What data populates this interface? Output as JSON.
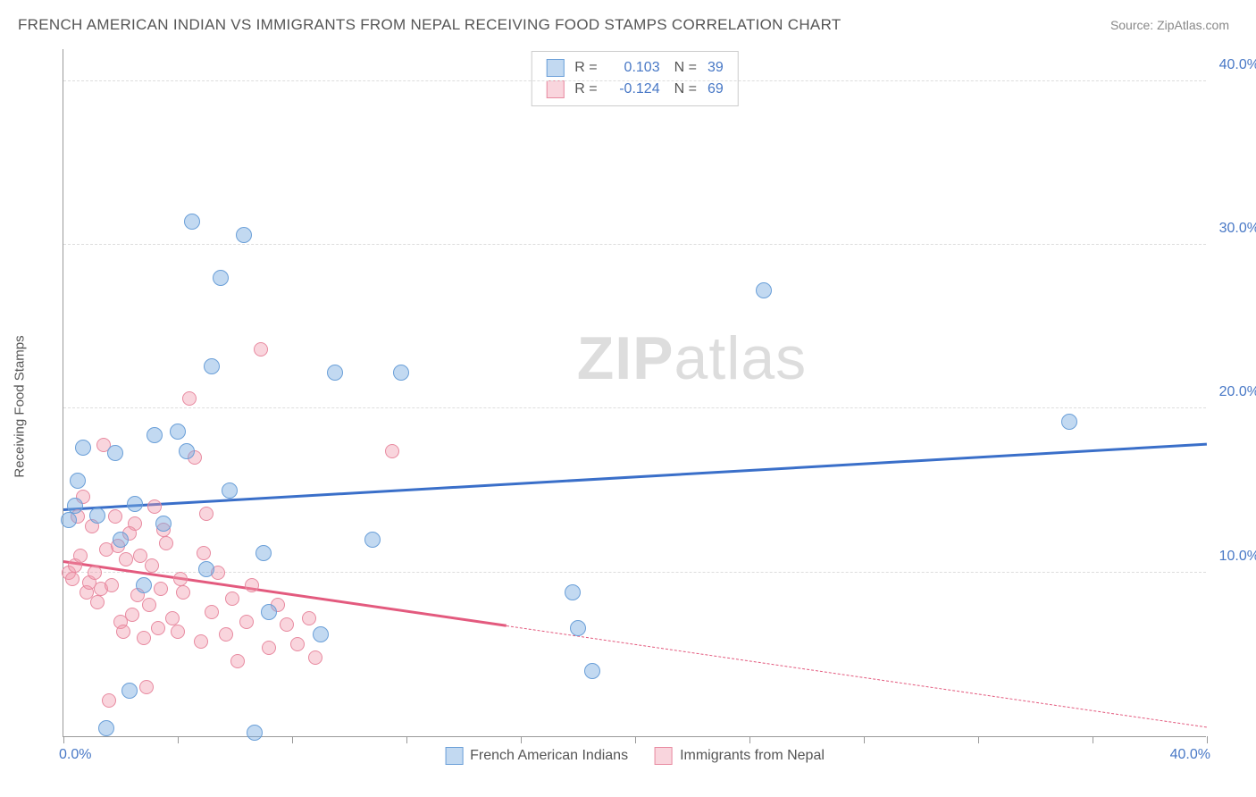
{
  "header": {
    "title": "FRENCH AMERICAN INDIAN VS IMMIGRANTS FROM NEPAL RECEIVING FOOD STAMPS CORRELATION CHART",
    "source": "Source: ZipAtlas.com"
  },
  "chart": {
    "type": "scatter",
    "ylabel": "Receiving Food Stamps",
    "watermark_bold": "ZIP",
    "watermark_light": "atlas",
    "xlim": [
      0,
      40
    ],
    "ylim": [
      0,
      42
    ],
    "xticks_minor": [
      0,
      4,
      8,
      12,
      16,
      20,
      24,
      28,
      32,
      36,
      40
    ],
    "xtick_label_left": "0.0%",
    "xtick_label_right": "40.0%",
    "yticks": [
      {
        "v": 10,
        "label": "10.0%"
      },
      {
        "v": 20,
        "label": "20.0%"
      },
      {
        "v": 30,
        "label": "30.0%"
      },
      {
        "v": 40,
        "label": "40.0%"
      }
    ],
    "background_color": "#ffffff",
    "grid_color": "#dddddd",
    "axis_color": "#999999",
    "tick_label_color": "#4878c6",
    "series": [
      {
        "name": "French American Indians",
        "color_fill": "rgba(120,170,225,0.45)",
        "color_stroke": "#6a9fd8",
        "marker_class": "m-blue",
        "marker_size": 18,
        "regression": {
          "x0": 0,
          "y0": 13.8,
          "x1": 40,
          "y1": 17.8,
          "solid_until_x": 40,
          "color": "#3a6fc9"
        },
        "r": "0.103",
        "n": "39",
        "points": [
          [
            0.2,
            13.2
          ],
          [
            0.4,
            14.1
          ],
          [
            0.5,
            15.6
          ],
          [
            0.7,
            17.6
          ],
          [
            1.2,
            13.5
          ],
          [
            1.8,
            17.3
          ],
          [
            1.5,
            0.5
          ],
          [
            2.0,
            12.0
          ],
          [
            2.3,
            2.8
          ],
          [
            2.5,
            14.2
          ],
          [
            2.8,
            9.2
          ],
          [
            3.2,
            18.4
          ],
          [
            3.5,
            13.0
          ],
          [
            4.0,
            18.6
          ],
          [
            4.3,
            17.4
          ],
          [
            4.5,
            31.4
          ],
          [
            5.2,
            22.6
          ],
          [
            5.5,
            28.0
          ],
          [
            5.8,
            15.0
          ],
          [
            6.3,
            30.6
          ],
          [
            6.7,
            0.2
          ],
          [
            7.0,
            11.2
          ],
          [
            7.2,
            7.6
          ],
          [
            5.0,
            10.2
          ],
          [
            9.0,
            6.2
          ],
          [
            9.5,
            22.2
          ],
          [
            10.8,
            12.0
          ],
          [
            11.8,
            22.2
          ],
          [
            17.8,
            8.8
          ],
          [
            18.0,
            6.6
          ],
          [
            18.5,
            4.0
          ],
          [
            24.5,
            27.2
          ],
          [
            35.2,
            19.2
          ]
        ]
      },
      {
        "name": "Immigrants from Nepal",
        "color_fill": "rgba(240,150,170,0.4)",
        "color_stroke": "#e88aa0",
        "marker_class": "m-pink",
        "marker_size": 16,
        "regression": {
          "x0": 0,
          "y0": 10.6,
          "x1": 40,
          "y1": 0.5,
          "solid_until_x": 15.5,
          "color": "#e35a7e"
        },
        "r": "-0.124",
        "n": "69",
        "points": [
          [
            0.2,
            10.0
          ],
          [
            0.3,
            9.6
          ],
          [
            0.4,
            10.4
          ],
          [
            0.5,
            13.4
          ],
          [
            0.6,
            11.0
          ],
          [
            0.8,
            8.8
          ],
          [
            0.9,
            9.4
          ],
          [
            1.0,
            12.8
          ],
          [
            1.1,
            10.0
          ],
          [
            1.3,
            9.0
          ],
          [
            1.4,
            17.8
          ],
          [
            1.5,
            11.4
          ],
          [
            1.7,
            9.2
          ],
          [
            1.8,
            13.4
          ],
          [
            2.0,
            7.0
          ],
          [
            2.1,
            6.4
          ],
          [
            2.2,
            10.8
          ],
          [
            2.4,
            7.4
          ],
          [
            2.5,
            13.0
          ],
          [
            2.6,
            8.6
          ],
          [
            2.8,
            6.0
          ],
          [
            2.9,
            3.0
          ],
          [
            3.0,
            8.0
          ],
          [
            3.1,
            10.4
          ],
          [
            3.3,
            6.6
          ],
          [
            3.4,
            9.0
          ],
          [
            3.6,
            11.8
          ],
          [
            3.8,
            7.2
          ],
          [
            4.0,
            6.4
          ],
          [
            4.2,
            8.8
          ],
          [
            4.4,
            20.6
          ],
          [
            4.6,
            17.0
          ],
          [
            4.8,
            5.8
          ],
          [
            5.0,
            13.6
          ],
          [
            5.2,
            7.6
          ],
          [
            5.4,
            10.0
          ],
          [
            5.7,
            6.2
          ],
          [
            5.9,
            8.4
          ],
          [
            6.1,
            4.6
          ],
          [
            6.4,
            7.0
          ],
          [
            6.6,
            9.2
          ],
          [
            6.9,
            23.6
          ],
          [
            7.2,
            5.4
          ],
          [
            7.5,
            8.0
          ],
          [
            7.8,
            6.8
          ],
          [
            8.2,
            5.6
          ],
          [
            8.6,
            7.2
          ],
          [
            8.8,
            4.8
          ],
          [
            11.5,
            17.4
          ],
          [
            1.6,
            2.2
          ],
          [
            2.3,
            12.4
          ],
          [
            3.2,
            14.0
          ],
          [
            0.7,
            14.6
          ],
          [
            1.2,
            8.2
          ],
          [
            1.9,
            11.6
          ],
          [
            2.7,
            11.0
          ],
          [
            3.5,
            12.6
          ],
          [
            4.1,
            9.6
          ],
          [
            4.9,
            11.2
          ]
        ]
      }
    ],
    "legend_bottom": [
      {
        "label": "French American Indians",
        "swatch": "sw-blue"
      },
      {
        "label": "Immigrants from Nepal",
        "swatch": "sw-pink"
      }
    ]
  }
}
